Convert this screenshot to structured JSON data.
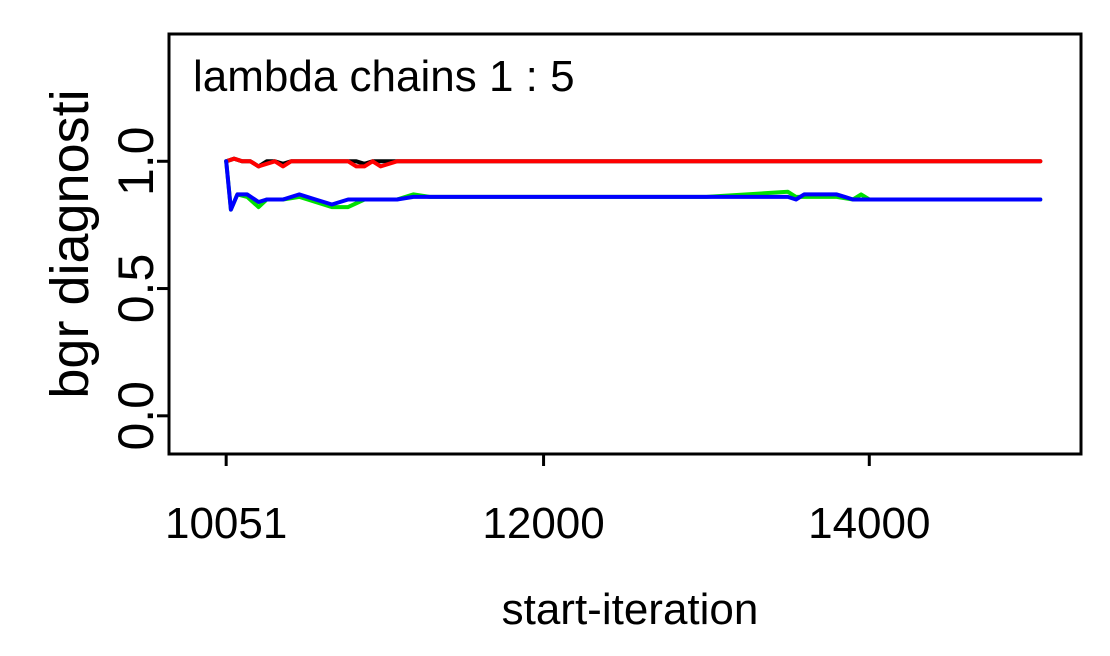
{
  "chart_data": {
    "type": "line",
    "title": "lambda chains 1 : 5",
    "xlabel": "start-iteration",
    "ylabel": "bgr diagnosti",
    "xlim": [
      9700,
      15300
    ],
    "ylim": [
      -0.15,
      1.5
    ],
    "x_ticks": [
      10051,
      12000,
      14000
    ],
    "x_tick_labels": [
      "10051",
      "12000",
      "14000"
    ],
    "y_ticks": [
      0.0,
      0.5,
      1.0
    ],
    "y_tick_labels": [
      "0.0",
      "0.5",
      "1.0"
    ],
    "grid": false,
    "legend": "none",
    "series": [
      {
        "color": "#000000",
        "x": [
          10051,
          10100,
          10150,
          10200,
          10250,
          10300,
          10350,
          10400,
          10450,
          10500,
          10550,
          10600,
          10650,
          10700,
          10750,
          10800,
          10850,
          10900,
          10950,
          11000,
          11100,
          11500,
          12000,
          13000,
          14000,
          15050
        ],
        "y": [
          1.0,
          1.01,
          1.0,
          1.0,
          0.98,
          1.0,
          1.0,
          0.99,
          1.0,
          1.0,
          1.0,
          1.0,
          1.0,
          1.0,
          1.0,
          1.0,
          1.0,
          0.99,
          1.0,
          1.0,
          1.0,
          1.0,
          1.0,
          1.0,
          1.0,
          1.0
        ]
      },
      {
        "color": "#ff0000",
        "x": [
          10051,
          10100,
          10150,
          10200,
          10250,
          10300,
          10350,
          10400,
          10450,
          10500,
          10550,
          10600,
          10650,
          10700,
          10750,
          10800,
          10850,
          10900,
          10950,
          11000,
          11100,
          11500,
          12000,
          13000,
          14000,
          15050
        ],
        "y": [
          1.0,
          1.01,
          1.0,
          1.0,
          0.98,
          0.99,
          1.0,
          0.98,
          1.0,
          1.0,
          1.0,
          1.0,
          1.0,
          1.0,
          1.0,
          1.0,
          0.98,
          0.98,
          1.0,
          0.98,
          1.0,
          1.0,
          1.0,
          1.0,
          1.0,
          1.0
        ]
      },
      {
        "color": "#00e000",
        "x": [
          10051,
          10080,
          10120,
          10180,
          10250,
          10300,
          10400,
          10500,
          10600,
          10700,
          10800,
          10900,
          11000,
          11100,
          11200,
          11300,
          12000,
          13000,
          13500,
          13550,
          13600,
          13800,
          13900,
          13950,
          14000,
          15050
        ],
        "y": [
          1.0,
          0.81,
          0.87,
          0.86,
          0.82,
          0.85,
          0.85,
          0.86,
          0.84,
          0.82,
          0.82,
          0.85,
          0.85,
          0.85,
          0.87,
          0.86,
          0.86,
          0.86,
          0.88,
          0.86,
          0.86,
          0.86,
          0.85,
          0.87,
          0.85,
          0.85
        ]
      },
      {
        "color": "#0000ff",
        "x": [
          10051,
          10080,
          10120,
          10180,
          10250,
          10300,
          10400,
          10500,
          10600,
          10700,
          10800,
          10900,
          11000,
          11100,
          11200,
          11300,
          12000,
          13000,
          13500,
          13550,
          13600,
          13800,
          13850,
          13900,
          14000,
          15050
        ],
        "y": [
          1.0,
          0.81,
          0.87,
          0.87,
          0.84,
          0.85,
          0.85,
          0.87,
          0.85,
          0.83,
          0.85,
          0.85,
          0.85,
          0.85,
          0.86,
          0.86,
          0.86,
          0.86,
          0.86,
          0.85,
          0.87,
          0.87,
          0.86,
          0.85,
          0.85,
          0.85
        ]
      }
    ]
  }
}
